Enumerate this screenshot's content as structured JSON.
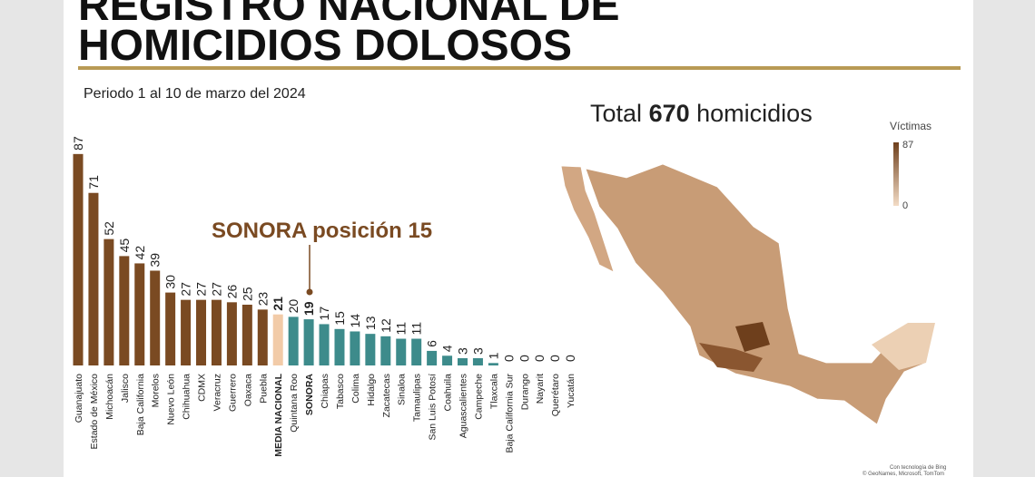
{
  "header": {
    "title_line1": "REGISTRO NACIONAL DE",
    "title_line2": "HOMICIDIOS DOLOSOS",
    "subtitle": "Periodo 1 al 10 de marzo del 2024"
  },
  "total": {
    "prefix": "Total",
    "value": 670,
    "suffix": "homicidios"
  },
  "map_legend": {
    "title": "Víctimas",
    "max": 87,
    "min": 0,
    "color_max": "#6e3f1c",
    "color_min": "#f3dcc6"
  },
  "credits": {
    "line1": "Con tecnología de Bing",
    "line2": "© GeoNames, Microsoft, TomTom"
  },
  "chart_data": {
    "type": "bar",
    "annotation": "SONORA posición 15",
    "categories": [
      "Guanajuato",
      "Estado de México",
      "Michoacán",
      "Jalisco",
      "Baja California",
      "Morelos",
      "Nuevo León",
      "Chihuahua",
      "CDMX",
      "Veracruz",
      "Guerrero",
      "Oaxaca",
      "Puebla",
      "MEDIA NACIONAL",
      "Quintana Roo",
      "SONORA",
      "Chiapas",
      "Tabasco",
      "Colima",
      "Hidalgo",
      "Zacatecas",
      "Sinaloa",
      "Tamaulipas",
      "San Luis Potosí",
      "Coahuila",
      "Aguascalientes",
      "Campeche",
      "Tlaxcala",
      "Baja California Sur",
      "Durango",
      "Nayarit",
      "Querétaro",
      "Yucatán"
    ],
    "values": [
      87,
      71,
      52,
      45,
      42,
      39,
      30,
      27,
      27,
      27,
      26,
      25,
      23,
      21,
      20,
      19,
      17,
      15,
      14,
      13,
      12,
      11,
      11,
      6,
      4,
      3,
      3,
      1,
      0,
      0,
      0,
      0,
      0
    ],
    "colors": [
      "#7a4a22",
      "#7a4a22",
      "#7a4a22",
      "#7a4a22",
      "#7a4a22",
      "#7a4a22",
      "#7a4a22",
      "#7a4a22",
      "#7a4a22",
      "#7a4a22",
      "#7a4a22",
      "#7a4a22",
      "#7a4a22",
      "#f2cba8",
      "#3d8b8b",
      "#3d8b8b",
      "#3d8b8b",
      "#3d8b8b",
      "#3d8b8b",
      "#3d8b8b",
      "#3d8b8b",
      "#3d8b8b",
      "#3d8b8b",
      "#3d8b8b",
      "#3d8b8b",
      "#3d8b8b",
      "#3d8b8b",
      "#3d8b8b",
      "#3d8b8b",
      "#3d8b8b",
      "#3d8b8b",
      "#3d8b8b",
      "#3d8b8b"
    ],
    "bold_categories": [
      13,
      15
    ]
  }
}
